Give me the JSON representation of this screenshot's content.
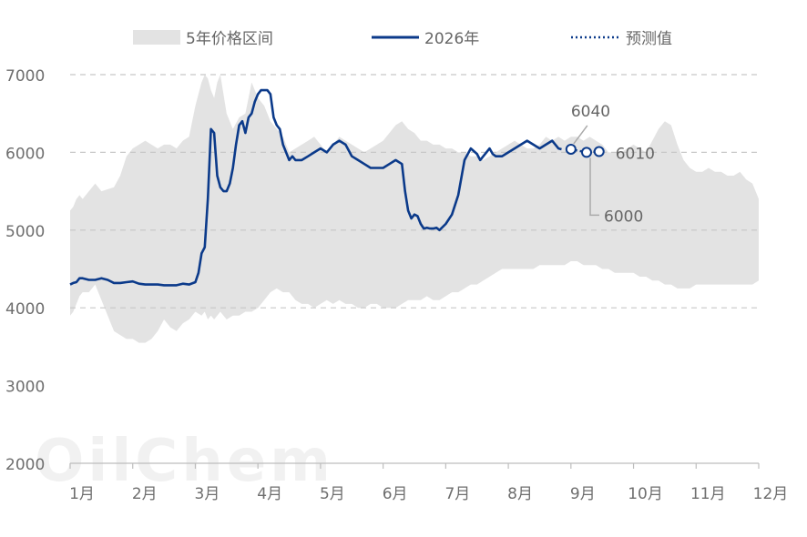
{
  "chart_data": {
    "type": "area+line",
    "legend": {
      "band_label": "5年价格区间",
      "series_label": "2026年",
      "forecast_label": "预测值"
    },
    "y_ticks": [
      "7000",
      "6000",
      "5000",
      "4000",
      "3000",
      "2000"
    ],
    "ylim": [
      2000,
      7000
    ],
    "months": [
      "1月",
      "2月",
      "3月",
      "4月",
      "5月",
      "6月",
      "7月",
      "8月",
      "9月",
      "10月",
      "11月",
      "12月"
    ],
    "xlim": [
      1,
      12
    ],
    "grid": "horizontal dashed",
    "legend_position": "top",
    "watermark": "OilChem",
    "band": {
      "x": [
        1.0,
        1.05,
        1.1,
        1.15,
        1.2,
        1.3,
        1.4,
        1.5,
        1.7,
        1.8,
        1.9,
        2.0,
        2.1,
        2.2,
        2.3,
        2.4,
        2.5,
        2.6,
        2.7,
        2.8,
        2.9,
        3.0,
        3.1,
        3.15,
        3.2,
        3.25,
        3.3,
        3.35,
        3.4,
        3.5,
        3.6,
        3.7,
        3.8,
        3.9,
        4.0,
        4.1,
        4.2,
        4.3,
        4.4,
        4.5,
        4.6,
        4.7,
        4.8,
        4.9,
        5.0,
        5.1,
        5.2,
        5.3,
        5.4,
        5.5,
        5.6,
        5.7,
        5.8,
        5.9,
        6.0,
        6.1,
        6.2,
        6.3,
        6.4,
        6.5,
        6.6,
        6.7,
        6.8,
        6.9,
        7.0,
        7.1,
        7.2,
        7.3,
        7.4,
        7.5,
        7.6,
        7.7,
        7.8,
        7.9,
        8.0,
        8.1,
        8.2,
        8.3,
        8.4,
        8.5,
        8.6,
        8.7,
        8.8,
        8.9,
        9.0,
        9.1,
        9.2,
        9.3,
        9.4,
        9.5,
        9.6,
        9.7,
        9.8,
        9.9,
        10.0,
        10.1,
        10.2,
        10.3,
        10.4,
        10.5,
        10.6,
        10.7,
        10.8,
        10.9,
        11.0,
        11.1,
        11.2,
        11.3,
        11.4,
        11.5,
        11.6,
        11.7,
        11.8,
        11.9,
        12.0
      ],
      "upper": [
        5250,
        5300,
        5400,
        5450,
        5400,
        5500,
        5600,
        5500,
        5550,
        5700,
        5950,
        6050,
        6100,
        6150,
        6100,
        6050,
        6100,
        6100,
        6050,
        6150,
        6200,
        6600,
        6900,
        7000,
        6950,
        6800,
        6700,
        6900,
        7000,
        6500,
        6300,
        6450,
        6500,
        6900,
        6700,
        6600,
        6400,
        6300,
        6200,
        6000,
        6050,
        6100,
        6150,
        6200,
        6100,
        6000,
        6100,
        6200,
        6150,
        6100,
        6050,
        6000,
        6050,
        6100,
        6150,
        6250,
        6350,
        6400,
        6300,
        6250,
        6150,
        6150,
        6100,
        6100,
        6050,
        6050,
        6000,
        6000,
        5950,
        5950,
        5900,
        5950,
        6000,
        6050,
        6100,
        6150,
        6100,
        6050,
        6050,
        6100,
        6200,
        6150,
        6200,
        6150,
        6200,
        6200,
        6150,
        6200,
        6150,
        6100,
        6000,
        6000,
        6000,
        6050,
        6100,
        6050,
        6000,
        6150,
        6300,
        6400,
        6350,
        6100,
        5900,
        5800,
        5750,
        5750,
        5800,
        5750,
        5750,
        5700,
        5700,
        5750,
        5650,
        5600,
        5400
      ],
      "lower": [
        3900,
        3950,
        4050,
        4150,
        4200,
        4200,
        4300,
        4100,
        3700,
        3650,
        3600,
        3600,
        3550,
        3550,
        3600,
        3700,
        3850,
        3750,
        3700,
        3800,
        3850,
        3950,
        3900,
        3950,
        3850,
        3900,
        3850,
        3900,
        3950,
        3850,
        3900,
        3900,
        3950,
        3950,
        4000,
        4100,
        4200,
        4250,
        4200,
        4200,
        4100,
        4050,
        4050,
        4000,
        4050,
        4100,
        4050,
        4100,
        4050,
        4050,
        4000,
        4000,
        4050,
        4050,
        4000,
        4000,
        4000,
        4050,
        4100,
        4100,
        4100,
        4150,
        4100,
        4100,
        4150,
        4200,
        4200,
        4250,
        4300,
        4300,
        4350,
        4400,
        4450,
        4500,
        4500,
        4500,
        4500,
        4500,
        4500,
        4550,
        4550,
        4550,
        4550,
        4550,
        4600,
        4600,
        4550,
        4550,
        4550,
        4500,
        4500,
        4450,
        4450,
        4450,
        4450,
        4400,
        4400,
        4350,
        4350,
        4300,
        4300,
        4250,
        4250,
        4250,
        4300,
        4300,
        4300,
        4300,
        4300,
        4300,
        4300,
        4300,
        4300,
        4300,
        4350
      ]
    },
    "series": [
      {
        "name": "2026年",
        "x": [
          1.0,
          1.05,
          1.1,
          1.15,
          1.2,
          1.3,
          1.4,
          1.5,
          1.6,
          1.7,
          1.8,
          1.9,
          2.0,
          2.1,
          2.2,
          2.3,
          2.4,
          2.5,
          2.6,
          2.7,
          2.8,
          2.9,
          3.0,
          3.05,
          3.1,
          3.15,
          3.2,
          3.25,
          3.3,
          3.35,
          3.4,
          3.45,
          3.5,
          3.55,
          3.6,
          3.65,
          3.7,
          3.75,
          3.8,
          3.85,
          3.9,
          3.95,
          4.0,
          4.05,
          4.1,
          4.15,
          4.2,
          4.25,
          4.3,
          4.35,
          4.4,
          4.45,
          4.5,
          4.55,
          4.6,
          4.7,
          4.8,
          4.9,
          5.0,
          5.1,
          5.2,
          5.3,
          5.4,
          5.5,
          5.6,
          5.7,
          5.8,
          5.9,
          6.0,
          6.1,
          6.2,
          6.3,
          6.35,
          6.4,
          6.45,
          6.5,
          6.55,
          6.6,
          6.65,
          6.7,
          6.75,
          6.8,
          6.85,
          6.9,
          7.0,
          7.1,
          7.2,
          7.3,
          7.4,
          7.5,
          7.55,
          7.6,
          7.65,
          7.7,
          7.75,
          7.8,
          7.9,
          8.0,
          8.1,
          8.2,
          8.3,
          8.4,
          8.5,
          8.6,
          8.7,
          8.8,
          8.85
        ],
        "values": [
          4300,
          4320,
          4330,
          4380,
          4380,
          4360,
          4360,
          4380,
          4360,
          4320,
          4320,
          4330,
          4340,
          4310,
          4300,
          4300,
          4300,
          4290,
          4290,
          4290,
          4310,
          4300,
          4330,
          4450,
          4700,
          4780,
          5400,
          6300,
          6250,
          5700,
          5550,
          5500,
          5500,
          5600,
          5800,
          6100,
          6350,
          6400,
          6250,
          6450,
          6500,
          6650,
          6750,
          6800,
          6800,
          6800,
          6750,
          6450,
          6350,
          6300,
          6100,
          6000,
          5900,
          5950,
          5900,
          5900,
          5950,
          6000,
          6050,
          6000,
          6100,
          6150,
          6100,
          5950,
          5900,
          5850,
          5800,
          5800,
          5800,
          5850,
          5900,
          5850,
          5500,
          5250,
          5150,
          5200,
          5180,
          5080,
          5020,
          5030,
          5020,
          5020,
          5030,
          5000,
          5080,
          5200,
          5450,
          5900,
          6050,
          5980,
          5900,
          5950,
          6000,
          6050,
          5980,
          5950,
          5950,
          6000,
          6050,
          6100,
          6150,
          6100,
          6050,
          6100,
          6150,
          6050,
          6040
        ]
      },
      {
        "name": "预测值",
        "x": [
          9.0,
          9.25,
          9.45
        ],
        "values": [
          6040,
          6000,
          6010
        ]
      }
    ],
    "annotations": [
      {
        "label": "6040",
        "x": 9.0,
        "value": 6040
      },
      {
        "label": "6010",
        "x": 9.45,
        "value": 6010
      },
      {
        "label": "6000",
        "x": 9.25,
        "value": 6000
      }
    ],
    "colors": {
      "band": "#e3e3e3",
      "line": "#0b3a8a",
      "grid": "#c8c8c8",
      "annotation_line": "#aaaaaa"
    }
  }
}
